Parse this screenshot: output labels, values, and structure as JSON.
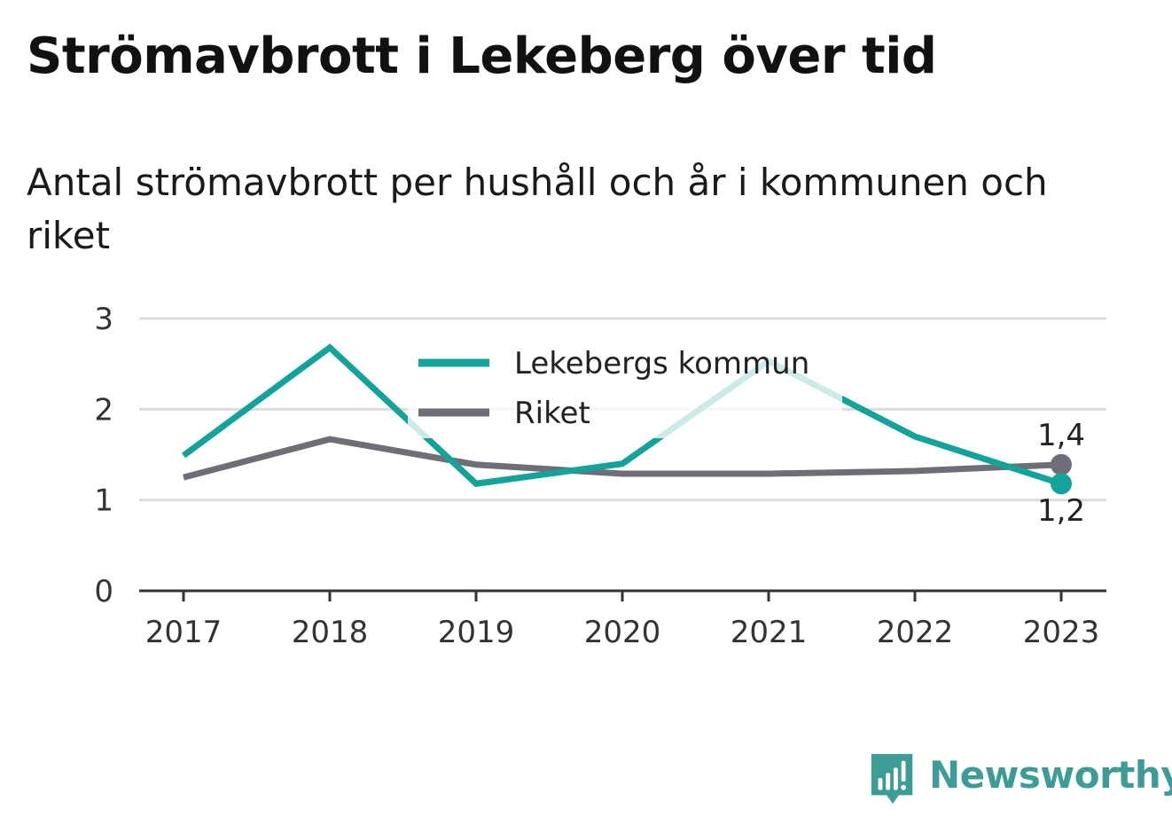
{
  "title": "Strömavbrott i Lekeberg över tid",
  "subtitle": "Antal strömavbrott per hushåll och år i kommunen och riket",
  "brand": {
    "name": "Newsworthy",
    "icon": "newsworthy-logo-icon",
    "color": "#3d9c96"
  },
  "chart_data": {
    "type": "line",
    "x": [
      "2017",
      "2018",
      "2019",
      "2020",
      "2021",
      "2022",
      "2023"
    ],
    "ylim": [
      0,
      3
    ],
    "yticks": [
      "0",
      "1",
      "2",
      "3"
    ],
    "grid": true,
    "legend_position": "top-center",
    "series": [
      {
        "name": "Lekebergs kommun",
        "color": "#13a39a",
        "values": [
          1.49,
          2.68,
          1.18,
          1.4,
          2.53,
          1.7,
          1.18
        ],
        "end_label": "1,2"
      },
      {
        "name": "Riket",
        "color": "#6e6e76",
        "values": [
          1.25,
          1.67,
          1.39,
          1.29,
          1.29,
          1.32,
          1.39
        ],
        "end_label": "1,4"
      }
    ]
  }
}
